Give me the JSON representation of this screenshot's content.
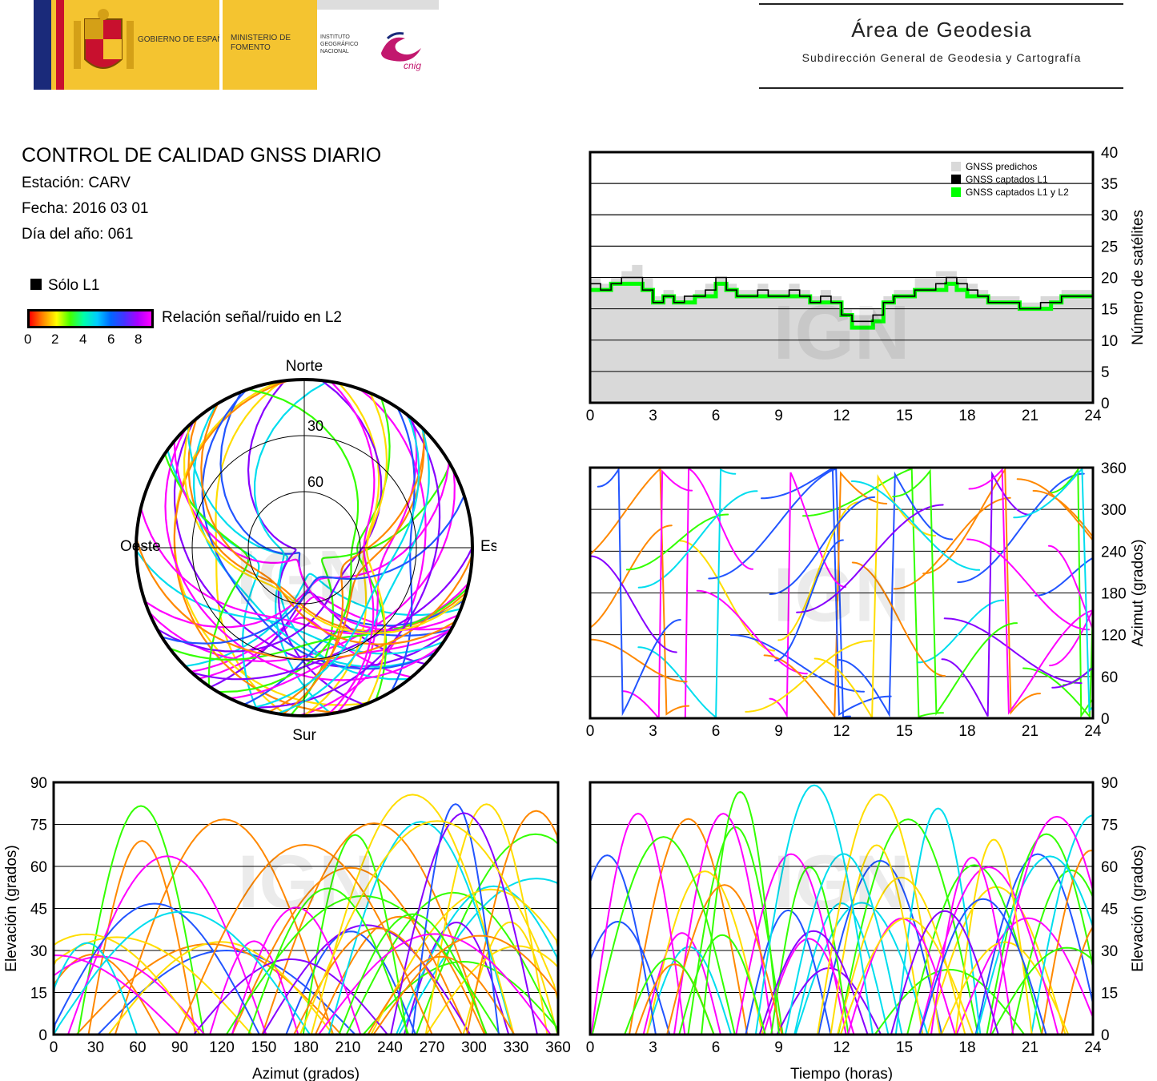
{
  "header": {
    "gov_label": "GOBIERNO DE ESPAÑA",
    "ministry_label": "MINISTERIO DE FOMENTO",
    "institute_label": "INSTITUTO GEOGRÁFICO NACIONAL",
    "cnig_label": "cnig",
    "area_title": "Área de Geodesia",
    "area_subtitle": "Subdirección General de Geodesia y Cartografía"
  },
  "info": {
    "title": "CONTROL DE CALIDAD GNSS DIARIO",
    "station": "Estación: CARV",
    "date": "Fecha: 2016 03 01",
    "doy": "Día del año: 061",
    "l1_only_label": "Sólo L1",
    "snr_label": "Relación señal/ruido en L2",
    "snr_ticks": [
      "0",
      "2",
      "4",
      "6",
      "8"
    ]
  },
  "colors": {
    "predicted": "#d9d9d9",
    "l1": "#000000",
    "l1l2": "#00ff00",
    "magenta": "#ff00ff",
    "violet": "#8800ff",
    "blue": "#2255ff",
    "cyan": "#00ddee",
    "green": "#33ff00",
    "yellow": "#ffdd00",
    "orange": "#ff8800",
    "red": "#ff0000"
  },
  "watermark": "IGN",
  "chart_data": [
    {
      "id": "satellites",
      "type": "area",
      "ylabel": "Número de satélites",
      "xlim": [
        0,
        24
      ],
      "ylim": [
        0,
        40
      ],
      "xticks": [
        "0",
        "3",
        "6",
        "9",
        "12",
        "15",
        "18",
        "21",
        "24"
      ],
      "yticks": [
        "0",
        "5",
        "10",
        "15",
        "20",
        "25",
        "30",
        "35",
        "40"
      ],
      "grid": true,
      "legend_position": "top-right",
      "legend": [
        "GNSS predichos",
        "GNSS captados L1",
        "GNSS captados L1 y L2"
      ],
      "x": [
        0,
        0.5,
        1,
        1.5,
        2,
        2.5,
        3,
        3.5,
        4,
        4.5,
        5,
        5.5,
        6,
        6.5,
        7,
        7.5,
        8,
        8.5,
        9,
        9.5,
        10,
        10.5,
        11,
        11.5,
        12,
        12.5,
        13,
        13.5,
        14,
        14.5,
        15,
        15.5,
        16,
        16.5,
        17,
        17.5,
        18,
        18.5,
        19,
        19.5,
        20,
        20.5,
        21,
        21.5,
        22,
        22.5,
        23,
        23.5,
        24
      ],
      "series": [
        {
          "name": "GNSS predichos",
          "values": [
            20,
            19,
            20,
            21,
            22,
            20,
            17,
            18,
            17,
            17,
            18,
            19,
            20,
            19,
            18,
            18,
            19,
            18,
            18,
            19,
            18,
            17,
            18,
            17,
            15,
            14,
            14,
            15,
            17,
            18,
            18,
            20,
            20,
            21,
            21,
            20,
            19,
            18,
            17,
            17,
            17,
            16,
            16,
            17,
            17,
            18,
            18,
            18,
            18
          ]
        },
        {
          "name": "GNSS captados L1",
          "values": [
            19,
            18,
            19,
            20,
            20,
            18,
            16,
            17,
            16,
            17,
            17,
            18,
            20,
            18,
            17,
            17,
            18,
            17,
            17,
            18,
            17,
            16,
            17,
            16,
            14,
            13,
            13,
            14,
            16,
            17,
            17,
            18,
            18,
            19,
            20,
            19,
            18,
            17,
            16,
            16,
            16,
            15,
            15,
            16,
            16,
            17,
            17,
            17,
            18
          ]
        },
        {
          "name": "GNSS captados L1 y L2",
          "values": [
            18,
            18,
            19,
            19,
            19,
            18,
            16,
            17,
            16,
            16,
            17,
            17,
            19,
            18,
            17,
            17,
            17,
            17,
            17,
            17,
            17,
            16,
            16,
            16,
            14,
            12,
            12,
            13,
            16,
            17,
            17,
            18,
            18,
            18,
            19,
            18,
            17,
            17,
            16,
            16,
            16,
            15,
            15,
            15,
            16,
            17,
            17,
            17,
            17
          ]
        }
      ]
    },
    {
      "id": "azimuth-time",
      "type": "scatter",
      "ylabel": "Azimut (grados)",
      "xlim": [
        0,
        24
      ],
      "ylim": [
        0,
        360
      ],
      "xticks": [
        "0",
        "3",
        "6",
        "9",
        "12",
        "15",
        "18",
        "21",
        "24"
      ],
      "yticks": [
        "0",
        "60",
        "120",
        "180",
        "240",
        "300",
        "360"
      ],
      "grid": true
    },
    {
      "id": "skyplot",
      "type": "scatter",
      "labels": {
        "north": "Norte",
        "south": "Sur",
        "east": "Este",
        "west": "Oeste"
      },
      "rings": [
        "30",
        "60"
      ]
    },
    {
      "id": "elev-azimuth",
      "type": "scatter",
      "xlabel": "Azimut (grados)",
      "ylabel": "Elevación (grados)",
      "xlim": [
        0,
        360
      ],
      "ylim": [
        0,
        90
      ],
      "xticks": [
        "0",
        "30",
        "60",
        "90",
        "120",
        "150",
        "180",
        "210",
        "240",
        "270",
        "300",
        "330",
        "360"
      ],
      "yticks": [
        "0",
        "15",
        "30",
        "45",
        "60",
        "75",
        "90"
      ],
      "grid": true
    },
    {
      "id": "elev-time",
      "type": "scatter",
      "xlabel": "Tiempo (horas)",
      "ylabel": "Elevación (grados)",
      "xlim": [
        0,
        24
      ],
      "ylim": [
        0,
        90
      ],
      "xticks": [
        "0",
        "3",
        "6",
        "9",
        "12",
        "15",
        "18",
        "21",
        "24"
      ],
      "yticks": [
        "0",
        "15",
        "30",
        "45",
        "60",
        "75",
        "90"
      ],
      "grid": true
    }
  ]
}
